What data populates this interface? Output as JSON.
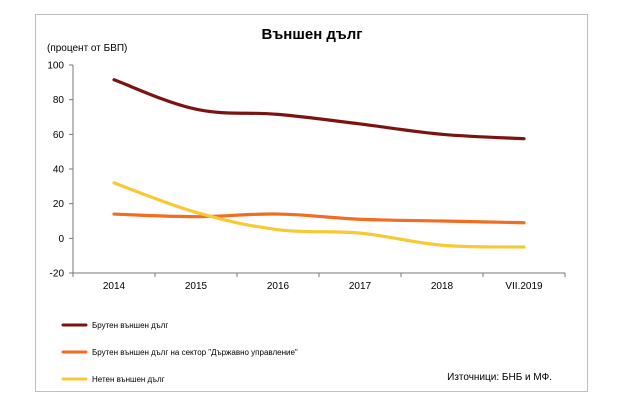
{
  "chart_data": {
    "type": "line",
    "title": "Външен дълг",
    "unit_label": "(процент от БВП)",
    "categories": [
      "2014",
      "2015",
      "2016",
      "2017",
      "2018",
      "VII.2019"
    ],
    "ylim": [
      -20,
      100
    ],
    "yticks": [
      100,
      80,
      60,
      40,
      20,
      0,
      -20
    ],
    "grid": false,
    "legend_position": "bottom-left",
    "series": [
      {
        "name": "Брутен външен дълг",
        "color": "#7b1411",
        "values": [
          91.5,
          74.5,
          71.5,
          66,
          60,
          57.5
        ]
      },
      {
        "name": "Брутен външен дълг на сектор \"Държавно управление\"",
        "color": "#f26d21",
        "values": [
          14,
          12.5,
          14,
          11,
          10,
          9
        ]
      },
      {
        "name": "Нетен външен дълг",
        "color": "#f7c934",
        "values": [
          32,
          15,
          5,
          3,
          -4,
          -5
        ]
      }
    ],
    "source": "Източници: БНБ и МФ."
  }
}
